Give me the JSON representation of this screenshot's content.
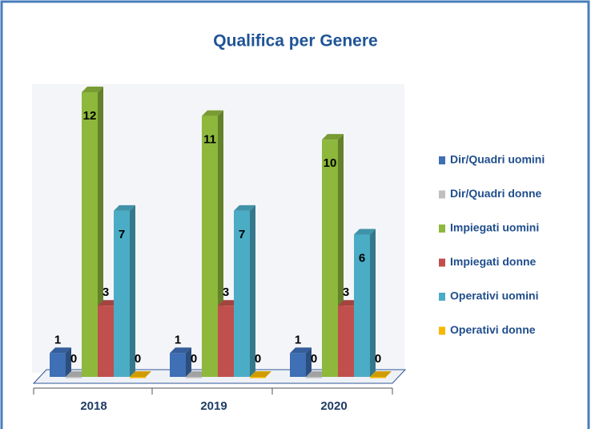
{
  "chart_data": {
    "type": "bar3d",
    "title": "Qualifica per Genere",
    "categories": [
      "2018",
      "2019",
      "2020"
    ],
    "series": [
      {
        "name": "Dir/Quadri uomini",
        "color": "#3f6fb5",
        "values": [
          1,
          1,
          1
        ]
      },
      {
        "name": "Dir/Quadri donne",
        "color": "#bfbfbf",
        "values": [
          0,
          0,
          0
        ]
      },
      {
        "name": "Impiegati uomini",
        "color": "#8db83c",
        "values": [
          12,
          11,
          10
        ]
      },
      {
        "name": "Impiegati donne",
        "color": "#c0504d",
        "values": [
          3,
          3,
          3
        ]
      },
      {
        "name": "Operativi uomini",
        "color": "#4bacc6",
        "values": [
          7,
          7,
          6
        ]
      },
      {
        "name": "Operativi donne",
        "color": "#f5b800",
        "values": [
          0,
          0,
          0
        ]
      }
    ],
    "legend": "right"
  }
}
